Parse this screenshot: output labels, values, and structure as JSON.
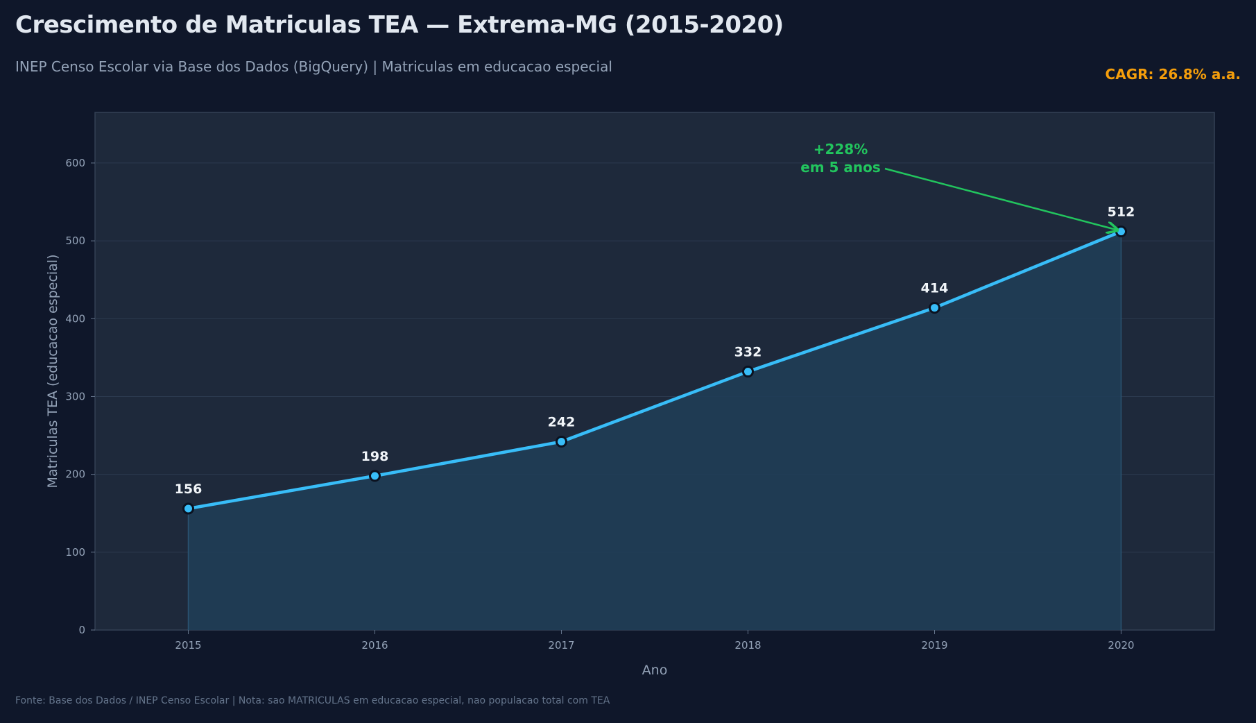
{
  "header": {
    "title": "Crescimento de Matriculas TEA — Extrema-MG (2015-2020)",
    "subtitle": "INEP Censo Escolar via Base dos Dados (BigQuery) | Matriculas em educacao especial",
    "cagr": "CAGR: 26.8% a.a."
  },
  "footer": {
    "source": "Fonte: Base dos Dados / INEP Censo Escolar | Nota: sao MATRICULAS em educacao especial, nao populacao total com TEA"
  },
  "colors": {
    "background": "#0f172a",
    "plot_bg": "#1e293b",
    "line": "#38bdf8",
    "area": "#1f3d57",
    "annotation": "#22c55e",
    "cagr": "#f59e0b"
  },
  "chart_data": {
    "type": "area",
    "title": "Crescimento de Matriculas TEA — Extrema-MG (2015-2020)",
    "xlabel": "Ano",
    "ylabel": "Matriculas TEA (educacao especial)",
    "x": [
      2015,
      2016,
      2017,
      2018,
      2019,
      2020
    ],
    "xlim": [
      2014.5,
      2020.5
    ],
    "ylim": [
      0,
      665
    ],
    "yticks": [
      0,
      100,
      200,
      300,
      400,
      500,
      600
    ],
    "grid": true,
    "series": [
      {
        "name": "Matriculas TEA",
        "values": [
          156,
          198,
          242,
          332,
          414,
          512
        ],
        "labels": [
          "156",
          "198",
          "242",
          "332",
          "414",
          "512"
        ]
      }
    ],
    "annotation": {
      "line1": "+228%",
      "line2": "em 5 anos",
      "x": 2020,
      "y": 512
    }
  }
}
